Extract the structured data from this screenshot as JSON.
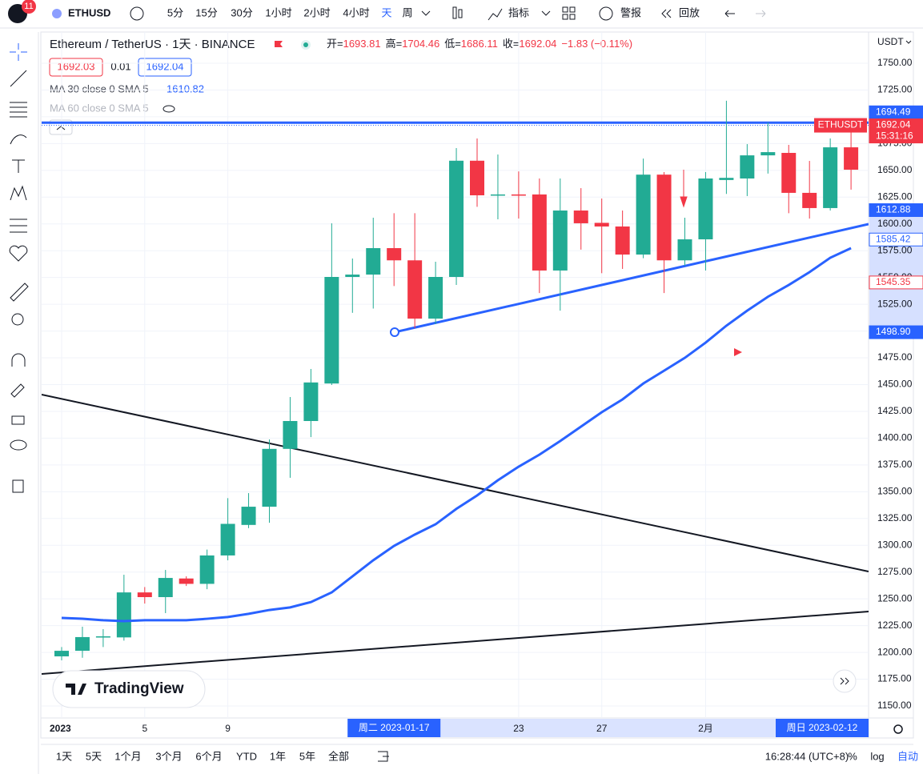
{
  "toolbar": {
    "badge": "11",
    "symbol": "ETHUSD",
    "timeframes": [
      "5分",
      "15分",
      "30分",
      "1小时",
      "2小时",
      "4小时",
      "天",
      "周"
    ],
    "active_timeframe": 6,
    "indicators": "指标",
    "alerts": "警报",
    "replay": "回放"
  },
  "legend": {
    "title": "Ethereum / TetherUS · 1天 · BINANCE",
    "ohlc": [
      {
        "label": "开=",
        "value": "1693.81"
      },
      {
        "label": "高=",
        "value": "1704.46"
      },
      {
        "label": "低=",
        "value": "1686.11"
      },
      {
        "label": "收=",
        "value": "1692.04"
      }
    ],
    "change": "−1.83 (−0.11%)",
    "bid": "1692.03",
    "spread": "0.01",
    "ask": "1692.04",
    "ma30": {
      "label": "MA 30 close 0 SMA 5",
      "value": "1610.82"
    },
    "ma60": {
      "label": "MA 60 close 0 SMA 5"
    }
  },
  "chart_data": {
    "type": "candlestick",
    "unit": "USDT",
    "categories": [
      "2023-01-01",
      "2023-01-02",
      "2023-01-03",
      "2023-01-04",
      "2023-01-05",
      "2023-01-06",
      "2023-01-07",
      "2023-01-08",
      "2023-01-09",
      "2023-01-10",
      "2023-01-11",
      "2023-01-12",
      "2023-01-13",
      "2023-01-14",
      "2023-01-15",
      "2023-01-16",
      "2023-01-17",
      "2023-01-18",
      "2023-01-19",
      "2023-01-20",
      "2023-01-21",
      "2023-01-22",
      "2023-01-23",
      "2023-01-24",
      "2023-01-25",
      "2023-01-26",
      "2023-01-27",
      "2023-01-28",
      "2023-01-29",
      "2023-01-30",
      "2023-01-31",
      "2023-02-01",
      "2023-02-02",
      "2023-02-03",
      "2023-02-04",
      "2023-02-05",
      "2023-02-06",
      "2023-02-07",
      "2023-02-08"
    ],
    "open": [
      1196.3,
      1201.5,
      1214,
      1214,
      1256,
      1251.6,
      1269,
      1264,
      1290.5,
      1319,
      1336,
      1390,
      1416,
      1451,
      1550.5,
      1552.7,
      1577.4,
      1566,
      1511.6,
      1550.5,
      1659,
      1626.5,
      1627.5,
      1627.5,
      1556.5,
      1612.5,
      1601,
      1597.6,
      1571.4,
      1646,
      1566,
      1585.6,
      1641,
      1642.4,
      1664,
      1666.3,
      1629,
      1614.8,
      1671.5
    ],
    "high": [
      1205,
      1224,
      1221.7,
      1272.5,
      1261,
      1277,
      1271,
      1296,
      1344,
      1348.7,
      1398.8,
      1438.4,
      1464.6,
      1600.6,
      1567.7,
      1605.8,
      1610,
      1610,
      1564.7,
      1670.8,
      1679.8,
      1664.8,
      1649,
      1642.4,
      1642.4,
      1633.4,
      1623.7,
      1612.5,
      1661,
      1648.4,
      1605.8,
      1648.4,
      1715,
      1674.5,
      1694.7,
      1673.8,
      1658.8,
      1679.8,
      1687.2
    ],
    "low": [
      1192.6,
      1195,
      1205,
      1211,
      1245.6,
      1236.7,
      1262,
      1259,
      1286,
      1316,
      1321,
      1363,
      1401,
      1449.6,
      1517,
      1521,
      1542,
      1502.7,
      1506.4,
      1543,
      1616,
      1604.3,
      1605,
      1535.5,
      1519,
      1576,
      1554,
      1558,
      1568,
      1535.5,
      1561,
      1556.5,
      1628,
      1626,
      1647,
      1610,
      1605,
      1612.5,
      1632
    ],
    "close": [
      1201.5,
      1214.3,
      1215,
      1256,
      1251.6,
      1269.5,
      1264,
      1290.5,
      1320,
      1336,
      1390,
      1416,
      1452,
      1550.5,
      1552.7,
      1577.4,
      1566,
      1511.6,
      1550.5,
      1659,
      1626.7,
      1627.5,
      1626.5,
      1556.5,
      1612.5,
      1600.6,
      1597.6,
      1571.4,
      1646,
      1566,
      1585.6,
      1642.4,
      1643,
      1664,
      1667,
      1629,
      1614.8,
      1671.5,
      1650.6
    ],
    "up_color": "#22ab94",
    "down_color": "#f23645",
    "series": [
      {
        "name": "MA 30",
        "color": "#2962ff",
        "values": [
          1232.2,
          1231.4,
          1230,
          1229.2,
          1230,
          1230,
          1230,
          1231.4,
          1233,
          1236,
          1239.6,
          1242,
          1247,
          1256,
          1271,
          1286,
          1299.4,
          1310,
          1319.6,
          1334,
          1346.5,
          1360.7,
          1373.4,
          1384.6,
          1397.3,
          1410.8,
          1424.2,
          1436.2,
          1451,
          1463,
          1475,
          1489.2,
          1505,
          1519,
          1532,
          1543,
          1555,
          1568.4,
          1577.4
        ]
      }
    ],
    "ylim": [
      1150,
      1750
    ],
    "yticks": [
      {
        "value": 1150,
        "label": "1150.00"
      },
      {
        "value": 1175,
        "label": "1175.00"
      },
      {
        "value": 1200,
        "label": "1200.00"
      },
      {
        "value": 1225,
        "label": "1225.00"
      },
      {
        "value": 1250,
        "label": "1250.00"
      },
      {
        "value": 1275,
        "label": "1275.00"
      },
      {
        "value": 1300,
        "label": "1300.00"
      },
      {
        "value": 1325,
        "label": "1325.00"
      },
      {
        "value": 1350,
        "label": "1350.00"
      },
      {
        "value": 1375,
        "label": "1375.00"
      },
      {
        "value": 1400,
        "label": "1400.00"
      },
      {
        "value": 1425,
        "label": "1425.00"
      },
      {
        "value": 1450,
        "label": "1450.00"
      },
      {
        "value": 1475,
        "label": "1475.00"
      },
      {
        "value": 1500,
        "label": "1500.00"
      },
      {
        "value": 1525,
        "label": "1525.00"
      },
      {
        "value": 1550,
        "label": "1550.00"
      },
      {
        "value": 1575,
        "label": "1575.00"
      },
      {
        "value": 1600,
        "label": "1600.00"
      },
      {
        "value": 1625,
        "label": "1625.00"
      },
      {
        "value": 1650,
        "label": "1650.00"
      },
      {
        "value": 1675,
        "label": "1675.00"
      },
      {
        "value": 1700,
        "label": "1700.00"
      },
      {
        "value": 1725,
        "label": "1725.00"
      },
      {
        "value": 1750,
        "label": "1750.00"
      }
    ],
    "xticks": [
      {
        "value": "2023-01-01",
        "label": "2023"
      },
      {
        "value": "2023-01-05",
        "label": "5"
      },
      {
        "value": "2023-01-09",
        "label": "9"
      },
      {
        "value": "2023-01-23",
        "label": "23"
      },
      {
        "value": "2023-01-27",
        "label": "27"
      },
      {
        "value": "2023-02-01",
        "label": "2月"
      }
    ],
    "range_labels": [
      "周二 2023-01-17",
      "周日 2023-02-12"
    ],
    "price_labels": [
      {
        "value": 1694.49,
        "label": "1694.49",
        "style": "blue"
      },
      {
        "value": 1692.04,
        "label": "1692.04",
        "style": "red",
        "countdown": "15:31:16"
      },
      {
        "value": 1612.88,
        "label": "1612.88",
        "style": "blue"
      },
      {
        "value": 1585.42,
        "label": "1585.42",
        "style": "outline-blue"
      },
      {
        "value": 1545.35,
        "label": "1545.35",
        "style": "outline-red"
      },
      {
        "value": 1498.9,
        "label": "1498.90",
        "style": "blue"
      }
    ],
    "symbol_tag": "ETHUSDT",
    "grid": true
  },
  "bottom": {
    "ranges": [
      "1天",
      "5天",
      "1个月",
      "3个月",
      "6个月",
      "YTD",
      "1年",
      "5年",
      "全部"
    ],
    "clock": "16:28:44 (UTC+8)",
    "percent": "%",
    "log": "log",
    "auto": "自动"
  },
  "logo": "TradingView"
}
